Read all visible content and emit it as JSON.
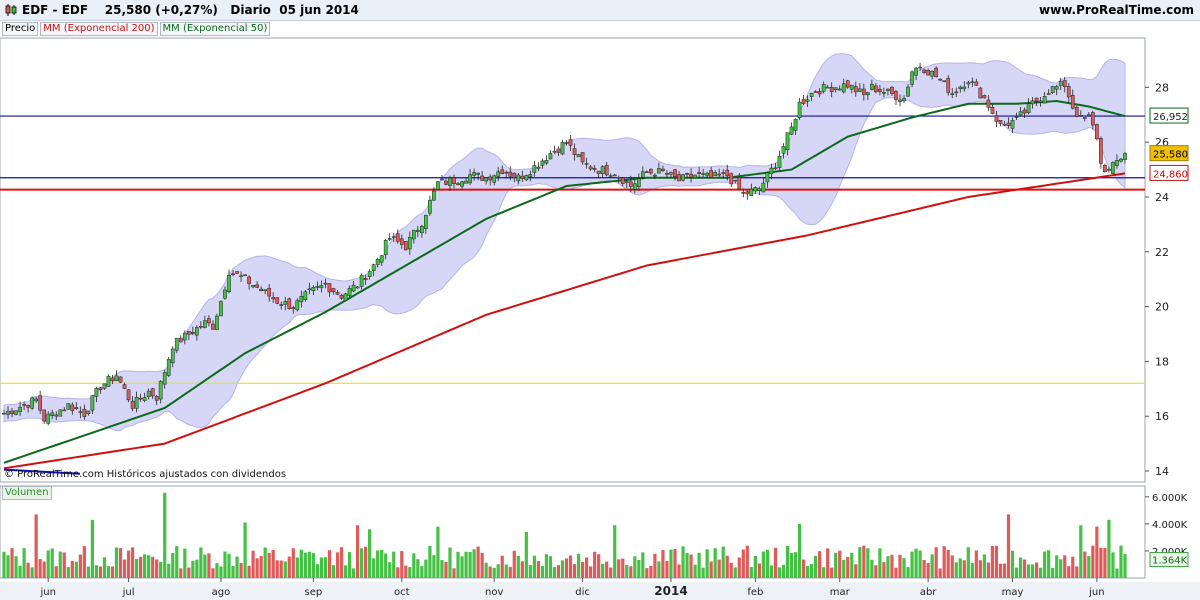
{
  "header": {
    "title": "EDF - EDF    25,580 (+0,27%)   Diario  05 jun 2014",
    "site": "www.ProRealTime.com",
    "logo": "candlestick-logo-icon"
  },
  "legend": {
    "price": "Precio",
    "ma200": "MM (Exponencial 200)",
    "ma50": "MM (Exponencial 50)"
  },
  "footnote": "© ProRealTime.com  Históricos ajustados con dividendos",
  "volume_label": "Volumen",
  "colors": {
    "up": "#44c044",
    "down": "#e05a5a",
    "ma200": "#d01010",
    "ma50": "#0a6a1a",
    "bollinger": "#c8c8f4",
    "hline_blue": "#1010a0",
    "hline_red": "#e01010",
    "hline_yellow": "#f0f000"
  },
  "chart_data": {
    "type": "candlestick",
    "ylim": [
      13.6,
      29.8
    ],
    "price_ticks": [
      "14",
      "16",
      "18",
      "20",
      "22",
      "24",
      "26",
      "28"
    ],
    "price_labels": {
      "last": "25,580",
      "ma50": "26,952",
      "ma200": "24,860"
    },
    "horizontal_lines": [
      {
        "value": 26.952,
        "color": "#1010a0"
      },
      {
        "value": 24.7,
        "color": "#1010a0"
      },
      {
        "value": 24.27,
        "color": "#e01010"
      },
      {
        "value": 17.2,
        "color": "#e8e800"
      }
    ],
    "x_labels": [
      "jun",
      "jul",
      "ago",
      "sep",
      "oct",
      "nov",
      "dic",
      "2014",
      "feb",
      "mar",
      "abr",
      "may",
      "jun"
    ],
    "x_label_index": [
      11,
      31,
      54,
      77,
      99,
      122,
      144,
      166,
      187,
      208,
      230,
      251,
      272
    ],
    "close_anchors": [
      [
        0,
        16.1
      ],
      [
        8,
        16.6
      ],
      [
        10,
        15.9
      ],
      [
        16,
        16.4
      ],
      [
        20,
        16.1
      ],
      [
        24,
        17.1
      ],
      [
        28,
        17.5
      ],
      [
        32,
        16.4
      ],
      [
        36,
        16.9
      ],
      [
        38,
        16.7
      ],
      [
        42,
        18.6
      ],
      [
        46,
        19.0
      ],
      [
        50,
        19.4
      ],
      [
        52,
        19.3
      ],
      [
        54,
        20.2
      ],
      [
        56,
        21.3
      ],
      [
        60,
        21.0
      ],
      [
        64,
        20.6
      ],
      [
        68,
        20.2
      ],
      [
        72,
        20.0
      ],
      [
        76,
        20.5
      ],
      [
        80,
        20.8
      ],
      [
        84,
        20.4
      ],
      [
        88,
        20.8
      ],
      [
        92,
        21.5
      ],
      [
        96,
        22.5
      ],
      [
        100,
        22.2
      ],
      [
        104,
        23.1
      ],
      [
        108,
        24.5
      ],
      [
        112,
        24.6
      ],
      [
        116,
        24.8
      ],
      [
        120,
        24.7
      ],
      [
        124,
        25.0
      ],
      [
        128,
        24.7
      ],
      [
        132,
        25.1
      ],
      [
        136,
        25.6
      ],
      [
        140,
        26.0
      ],
      [
        144,
        25.2
      ],
      [
        148,
        25.0
      ],
      [
        152,
        24.9
      ],
      [
        156,
        24.4
      ],
      [
        160,
        24.9
      ],
      [
        164,
        24.9
      ],
      [
        168,
        24.6
      ],
      [
        172,
        24.8
      ],
      [
        176,
        24.7
      ],
      [
        180,
        24.8
      ],
      [
        184,
        24.1
      ],
      [
        188,
        24.3
      ],
      [
        192,
        25.2
      ],
      [
        196,
        26.5
      ],
      [
        198,
        27.4
      ],
      [
        202,
        27.9
      ],
      [
        206,
        28.0
      ],
      [
        210,
        28.1
      ],
      [
        214,
        27.7
      ],
      [
        216,
        28.0
      ],
      [
        220,
        27.8
      ],
      [
        224,
        27.6
      ],
      [
        226,
        28.6
      ],
      [
        228,
        28.8
      ],
      [
        232,
        28.4
      ],
      [
        236,
        27.8
      ],
      [
        240,
        28.3
      ],
      [
        244,
        27.6
      ],
      [
        246,
        27.1
      ],
      [
        248,
        26.6
      ],
      [
        252,
        26.8
      ],
      [
        256,
        27.4
      ],
      [
        260,
        27.9
      ],
      [
        264,
        28.1
      ],
      [
        266,
        27.3
      ],
      [
        268,
        26.8
      ],
      [
        270,
        26.9
      ],
      [
        272,
        26.2
      ],
      [
        273,
        25.2
      ],
      [
        275,
        24.9
      ],
      [
        277,
        25.3
      ],
      [
        279,
        25.58
      ]
    ],
    "ma200_anchors": [
      [
        0,
        14.1
      ],
      [
        40,
        15.0
      ],
      [
        80,
        17.2
      ],
      [
        120,
        19.7
      ],
      [
        160,
        21.5
      ],
      [
        200,
        22.6
      ],
      [
        240,
        24.0
      ],
      [
        279,
        24.86
      ]
    ],
    "ma50_anchors": [
      [
        0,
        14.3
      ],
      [
        20,
        15.3
      ],
      [
        40,
        16.3
      ],
      [
        60,
        18.3
      ],
      [
        80,
        19.8
      ],
      [
        100,
        21.5
      ],
      [
        120,
        23.2
      ],
      [
        140,
        24.4
      ],
      [
        160,
        24.7
      ],
      [
        180,
        24.7
      ],
      [
        196,
        25.0
      ],
      [
        210,
        26.2
      ],
      [
        226,
        26.9
      ],
      [
        240,
        27.4
      ],
      [
        252,
        27.4
      ],
      [
        262,
        27.5
      ],
      [
        270,
        27.3
      ],
      [
        279,
        26.95
      ]
    ],
    "volume": {
      "ticks": [
        "6.000K",
        "4.000K",
        "2.000K"
      ],
      "ymax": 6800,
      "last": "1.364K",
      "spikes": [
        [
          8,
          4700
        ],
        [
          22,
          4300
        ],
        [
          40,
          6300
        ],
        [
          60,
          4100
        ],
        [
          88,
          3900
        ],
        [
          91,
          3600
        ],
        [
          108,
          3800
        ],
        [
          130,
          3400
        ],
        [
          152,
          3900
        ],
        [
          198,
          4000
        ],
        [
          250,
          4700
        ],
        [
          268,
          3900
        ],
        [
          272,
          3800
        ],
        [
          275,
          4300
        ]
      ]
    }
  }
}
